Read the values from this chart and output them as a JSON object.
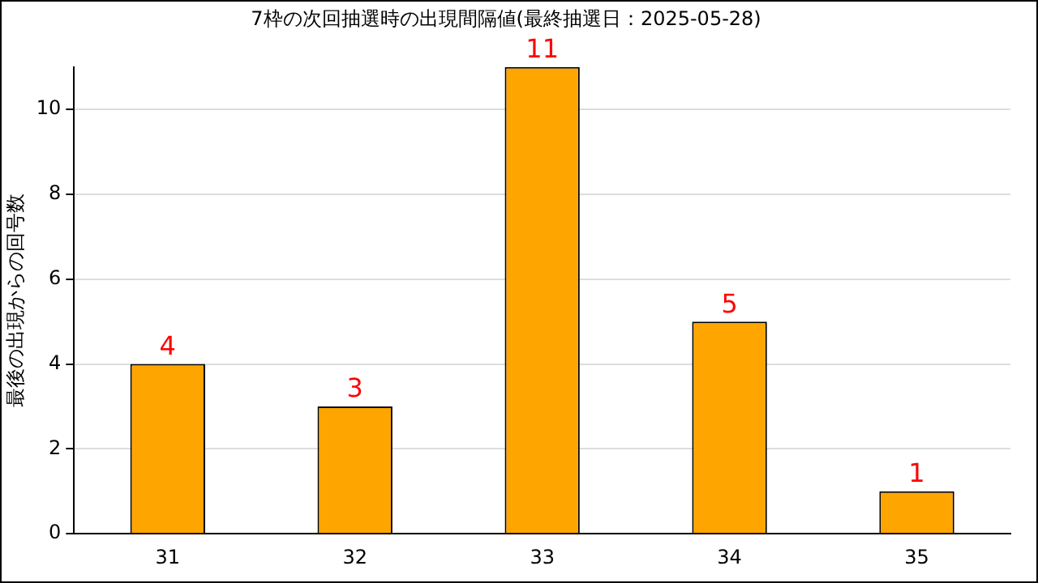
{
  "chart_data": {
    "type": "bar",
    "title": "7枠の次回抽選時の出現間隔値(最終抽選日：2025-05-28)",
    "ylabel": "最後の出現からの回号数",
    "categories": [
      "31",
      "32",
      "33",
      "34",
      "35"
    ],
    "values": [
      4,
      3,
      11,
      5,
      1
    ],
    "color": "#ffa500",
    "ylim": [
      0,
      11
    ],
    "yticks": [
      0,
      2,
      4,
      6,
      8,
      10
    ],
    "grid": "y",
    "data_labels": true,
    "legend": false
  }
}
